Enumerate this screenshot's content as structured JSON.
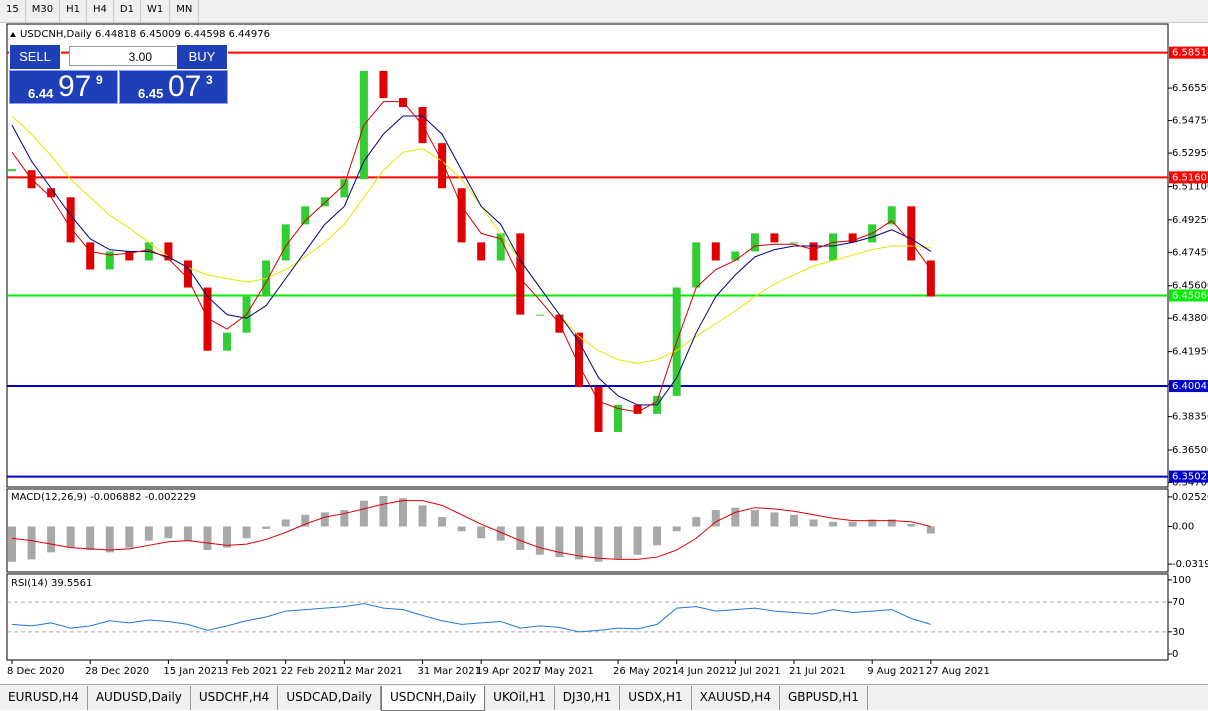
{
  "toolbar": [
    "15",
    "M30",
    "H1",
    "H4",
    "D1",
    "W1",
    "MN"
  ],
  "tabs": [
    "EURUSD,H4",
    "AUDUSD,Daily",
    "USDCHF,H4",
    "USDCAD,Daily",
    "USDCNH,Daily",
    "UKOil,H1",
    "DJ30,H1",
    "USDX,H1",
    "XAUUSD,H4",
    "GBPUSD,H1"
  ],
  "active_tab": 4,
  "trade_panel": {
    "sell": "SELL",
    "buy": "BUY",
    "volume": "3.00",
    "bid": {
      "prefix": "6.44",
      "big": "97",
      "sup": "9"
    },
    "ask": {
      "prefix": "6.45",
      "big": "07",
      "sup": "3"
    }
  },
  "chart_data": {
    "type": "candlestick",
    "header": "USDCNH,Daily 6.44818 6.45009 6.44598 6.44976",
    "categories": [
      "8 Dec 2020",
      null,
      null,
      null,
      "28 Dec 2020",
      null,
      null,
      null,
      "15 Jan 2021",
      null,
      null,
      "3 Feb 2021",
      null,
      null,
      "22 Feb 2021",
      null,
      null,
      "12 Mar 2021",
      null,
      null,
      null,
      "31 Mar 2021",
      null,
      null,
      "19 Apr 2021",
      null,
      null,
      "7 May 2021",
      null,
      null,
      null,
      "26 May 2021",
      null,
      null,
      "14 Jun 2021",
      null,
      null,
      "2 Jul 2021",
      null,
      null,
      "21 Jul 2021",
      null,
      null,
      null,
      "9 Aug 2021",
      null,
      null,
      "27 Aug 2021"
    ],
    "values": [
      6.52,
      6.51,
      6.505,
      6.48,
      6.465,
      6.475,
      6.47,
      6.48,
      6.47,
      6.455,
      6.42,
      6.43,
      6.45,
      6.47,
      6.49,
      6.5,
      6.505,
      6.515,
      6.575,
      6.56,
      6.555,
      6.535,
      6.51,
      6.48,
      6.47,
      6.485,
      6.44,
      6.44,
      6.43,
      6.4,
      6.375,
      6.39,
      6.385,
      6.395,
      6.455,
      6.48,
      6.47,
      6.475,
      6.485,
      6.48,
      6.48,
      6.47,
      6.485,
      6.48,
      6.49,
      6.5,
      6.47,
      6.45
    ],
    "up_color": "#32cd32",
    "down_color": "#e00000",
    "series": [
      {
        "color": "#e6e600",
        "values": [
          6.55,
          6.54,
          6.528,
          6.515,
          6.505,
          6.495,
          6.488,
          6.48,
          6.472,
          6.466,
          6.462,
          6.46,
          6.458,
          6.46,
          6.465,
          6.472,
          6.48,
          6.49,
          6.505,
          6.52,
          6.53,
          6.532,
          6.525,
          6.515,
          6.5,
          6.485,
          6.47,
          6.455,
          6.44,
          6.428,
          6.42,
          6.415,
          6.413,
          6.415,
          6.42,
          6.428,
          6.435,
          6.442,
          6.45,
          6.457,
          6.462,
          6.467,
          6.47,
          6.473,
          6.476,
          6.478,
          6.478,
          6.477
        ]
      },
      {
        "color": "#000080",
        "values": [
          6.545,
          6.525,
          6.51,
          6.495,
          6.482,
          6.476,
          6.475,
          6.475,
          6.472,
          6.466,
          6.45,
          6.44,
          6.438,
          6.445,
          6.46,
          6.475,
          6.49,
          6.5,
          6.525,
          6.54,
          6.55,
          6.55,
          6.54,
          6.52,
          6.5,
          6.49,
          6.47,
          6.455,
          6.44,
          6.425,
          6.405,
          6.395,
          6.39,
          6.39,
          6.405,
          6.43,
          6.45,
          6.462,
          6.472,
          6.476,
          6.478,
          6.478,
          6.478,
          6.48,
          6.483,
          6.487,
          6.482,
          6.475
        ]
      },
      {
        "color": "#d00000",
        "values": [
          6.53,
          6.515,
          6.505,
          6.488,
          6.475,
          6.473,
          6.474,
          6.476,
          6.471,
          6.46,
          6.438,
          6.432,
          6.44,
          6.458,
          6.478,
          6.492,
          6.502,
          6.512,
          6.545,
          6.558,
          6.558,
          6.545,
          6.525,
          6.5,
          6.485,
          6.482,
          6.46,
          6.448,
          6.435,
          6.412,
          6.392,
          6.388,
          6.386,
          6.392,
          6.425,
          6.455,
          6.465,
          6.47,
          6.478,
          6.479,
          6.479,
          6.476,
          6.48,
          6.481,
          6.485,
          6.492,
          6.48,
          6.465
        ]
      }
    ],
    "ylim": [
      6.3445,
      6.601
    ],
    "yticks": [
      {
        "value": 6.5655,
        "label": "6.56550"
      },
      {
        "value": 6.5475,
        "label": "6.54750"
      },
      {
        "value": 6.5295,
        "label": "6.52950"
      },
      {
        "value": 6.511,
        "label": "6.51100"
      },
      {
        "value": 6.4925,
        "label": "6.49250"
      },
      {
        "value": 6.4745,
        "label": "6.47450"
      },
      {
        "value": 6.456,
        "label": "6.45600"
      },
      {
        "value": 6.438,
        "label": "6.43800"
      },
      {
        "value": 6.4195,
        "label": "6.41950"
      },
      {
        "value": 6.4015,
        "label": "6.40150"
      },
      {
        "value": 6.3835,
        "label": "6.38350"
      },
      {
        "value": 6.365,
        "label": "6.36500"
      },
      {
        "value": 6.347,
        "label": "6.34700"
      }
    ],
    "levels": [
      {
        "value": 6.58514,
        "color": "#ff0000"
      },
      {
        "value": 6.51605,
        "color": "#ff0000"
      },
      {
        "value": {
          "value": 6.4506,
          "label": "6.45060"
        },
        "color": "#00ee00"
      },
      {
        "value": 6.40042,
        "color": "#0000cc"
      },
      {
        "value": 6.35025,
        "color": "#0000cc"
      }
    ],
    "macd": {
      "title": "MACD(12,26,9) -0.006882 -0.002229",
      "hist_color": "#a8a8a8",
      "signal_color": "#e00000",
      "values": [
        -0.03,
        -0.028,
        -0.022,
        -0.018,
        -0.02,
        -0.022,
        -0.018,
        -0.012,
        -0.01,
        -0.012,
        -0.02,
        -0.018,
        -0.01,
        -0.002,
        0.006,
        0.01,
        0.012,
        0.014,
        0.022,
        0.026,
        0.024,
        0.018,
        0.008,
        -0.004,
        -0.01,
        -0.012,
        -0.02,
        -0.024,
        -0.026,
        -0.028,
        -0.03,
        -0.028,
        -0.024,
        -0.016,
        -0.004,
        0.008,
        0.014,
        0.016,
        0.014,
        0.012,
        0.01,
        0.006,
        0.004,
        0.004,
        0.006,
        0.006,
        0.002,
        -0.006
      ],
      "signal": [
        -0.01,
        -0.012,
        -0.015,
        -0.018,
        -0.019,
        -0.02,
        -0.019,
        -0.016,
        -0.013,
        -0.012,
        -0.014,
        -0.016,
        -0.015,
        -0.011,
        -0.005,
        0.002,
        0.008,
        0.011,
        0.015,
        0.019,
        0.022,
        0.022,
        0.018,
        0.01,
        0.002,
        -0.005,
        -0.012,
        -0.018,
        -0.022,
        -0.025,
        -0.027,
        -0.028,
        -0.028,
        -0.026,
        -0.02,
        -0.01,
        0.004,
        0.012,
        0.016,
        0.015,
        0.013,
        0.01,
        0.007,
        0.005,
        0.005,
        0.005,
        0.004,
        0.0
      ],
      "ylim": [
        -0.0387,
        0.0319
      ],
      "yticks": [
        0.025205,
        {
          "value": 0,
          "label": "0.00"
        },
        -0.03198
      ]
    },
    "rsi": {
      "title": "RSI(14) 39.5561",
      "color": "#1e78d8",
      "values": [
        40,
        38,
        42,
        35,
        38,
        45,
        42,
        46,
        44,
        40,
        32,
        38,
        45,
        50,
        58,
        60,
        62,
        64,
        68,
        62,
        60,
        52,
        45,
        40,
        42,
        44,
        35,
        38,
        36,
        30,
        32,
        35,
        34,
        40,
        62,
        64,
        58,
        60,
        62,
        58,
        56,
        54,
        60,
        56,
        58,
        60,
        48,
        40
      ],
      "ylim": [
        -8,
        108
      ],
      "yticks": [
        100,
        70,
        30,
        0
      ],
      "levels": [
        70,
        30
      ]
    }
  }
}
